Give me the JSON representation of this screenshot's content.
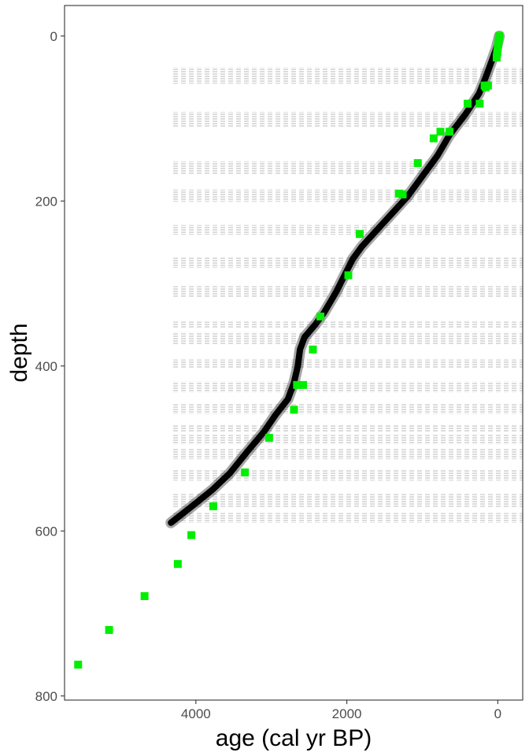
{
  "chart_data": {
    "type": "scatter",
    "title": "",
    "xlabel": "age (cal yr BP)",
    "ylabel": "depth",
    "x_reversed": true,
    "y_reversed": true,
    "xlim": [
      5740,
      -330
    ],
    "ylim": [
      -37,
      805
    ],
    "x_ticks": [
      4000,
      2000,
      0
    ],
    "y_ticks": [
      0,
      200,
      400,
      600,
      800
    ],
    "grid": false,
    "legend": "none",
    "colors": {
      "points": "#00ee00",
      "model": "#000000",
      "band": "#dcdcdc",
      "axis": "#333333",
      "tick_label": "#4d4d4d"
    },
    "series": [
      {
        "type": "scatter",
        "points": [
          {
            "x": -20,
            "y": 0
          },
          {
            "x": -15,
            "y": 3
          },
          {
            "x": -10,
            "y": 6
          },
          {
            "x": -5,
            "y": 10
          },
          {
            "x": 0,
            "y": 14
          },
          {
            "x": 5,
            "y": 19
          },
          {
            "x": 10,
            "y": 22
          },
          {
            "x": 15,
            "y": 26
          },
          {
            "x": 130,
            "y": 60
          },
          {
            "x": 175,
            "y": 60
          },
          {
            "x": 160,
            "y": 62
          },
          {
            "x": 400,
            "y": 82
          },
          {
            "x": 240,
            "y": 82
          },
          {
            "x": 850,
            "y": 124
          },
          {
            "x": 760,
            "y": 116
          },
          {
            "x": 640,
            "y": 116
          },
          {
            "x": 1060,
            "y": 154
          },
          {
            "x": 1310,
            "y": 191
          },
          {
            "x": 1260,
            "y": 192
          },
          {
            "x": 1830,
            "y": 240
          },
          {
            "x": 1980,
            "y": 290
          },
          {
            "x": 2350,
            "y": 340
          },
          {
            "x": 2450,
            "y": 380
          },
          {
            "x": 2660,
            "y": 423
          },
          {
            "x": 2580,
            "y": 423
          },
          {
            "x": 2700,
            "y": 453
          },
          {
            "x": 3030,
            "y": 487
          },
          {
            "x": 3350,
            "y": 529
          },
          {
            "x": 3770,
            "y": 570
          },
          {
            "x": 4060,
            "y": 605
          },
          {
            "x": 4240,
            "y": 640
          },
          {
            "x": 4680,
            "y": 679
          },
          {
            "x": 5150,
            "y": 720
          },
          {
            "x": 5560,
            "y": 762
          }
        ]
      },
      {
        "type": "line",
        "points": [
          {
            "x": -20,
            "y": 0
          },
          {
            "x": 20,
            "y": 15
          },
          {
            "x": 80,
            "y": 30
          },
          {
            "x": 160,
            "y": 50
          },
          {
            "x": 250,
            "y": 70
          },
          {
            "x": 430,
            "y": 95
          },
          {
            "x": 640,
            "y": 120
          },
          {
            "x": 800,
            "y": 145
          },
          {
            "x": 1000,
            "y": 170
          },
          {
            "x": 1200,
            "y": 195
          },
          {
            "x": 1400,
            "y": 215
          },
          {
            "x": 1600,
            "y": 235
          },
          {
            "x": 1800,
            "y": 255
          },
          {
            "x": 1920,
            "y": 270
          },
          {
            "x": 2030,
            "y": 290
          },
          {
            "x": 2140,
            "y": 310
          },
          {
            "x": 2300,
            "y": 335
          },
          {
            "x": 2420,
            "y": 350
          },
          {
            "x": 2560,
            "y": 365
          },
          {
            "x": 2620,
            "y": 380
          },
          {
            "x": 2650,
            "y": 400
          },
          {
            "x": 2700,
            "y": 420
          },
          {
            "x": 2780,
            "y": 440
          },
          {
            "x": 2950,
            "y": 460
          },
          {
            "x": 3100,
            "y": 480
          },
          {
            "x": 3330,
            "y": 505
          },
          {
            "x": 3550,
            "y": 530
          },
          {
            "x": 3780,
            "y": 550
          },
          {
            "x": 4050,
            "y": 570
          },
          {
            "x": 4330,
            "y": 590
          }
        ]
      }
    ],
    "bands": [
      [
        38,
        58
      ],
      [
        92,
        110
      ],
      [
        152,
        168
      ],
      [
        186,
        201
      ],
      [
        229,
        241
      ],
      [
        268,
        281
      ],
      [
        303,
        317
      ],
      [
        346,
        354
      ],
      [
        359,
        374
      ],
      [
        392,
        403
      ],
      [
        419,
        432
      ],
      [
        446,
        458
      ],
      [
        471,
        480
      ],
      [
        483,
        495
      ],
      [
        500,
        513
      ],
      [
        526,
        539
      ],
      [
        555,
        571
      ],
      [
        578,
        590
      ]
    ],
    "bands_age_range": [
      4300,
      -330
    ]
  }
}
